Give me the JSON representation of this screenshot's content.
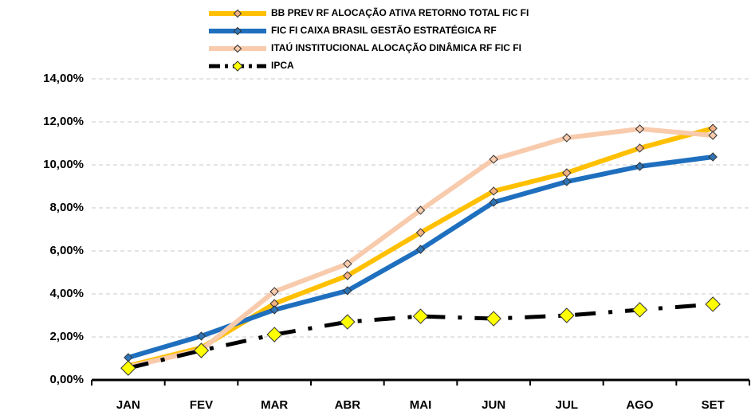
{
  "chart_data": {
    "type": "line",
    "categories": [
      "JAN",
      "FEV",
      "MAR",
      "ABR",
      "MAI",
      "JUN",
      "JUL",
      "AGO",
      "SET"
    ],
    "series": [
      {
        "name": "BB PREV RF ALOCAÇÃO ATIVA RETORNO TOTAL FIC FI",
        "color": "#FFC000",
        "marker_color": "#F4B183",
        "values": [
          0.65,
          1.5,
          3.55,
          4.85,
          6.85,
          8.78,
          9.63,
          10.78,
          11.7
        ]
      },
      {
        "name": "FIC FI CAIXA BRASIL GESTÃO ESTRATÉGICA RF",
        "color": "#1F6FBF",
        "marker_color": "#2E75B6",
        "values": [
          1.04,
          2.04,
          3.26,
          4.15,
          6.07,
          8.26,
          9.22,
          9.93,
          10.37
        ]
      },
      {
        "name": "ITAÚ INSTITUCIONAL ALOCAÇÃO DINÂMICA RF FIC FI",
        "color": "#F8CBAD",
        "marker_color": "#F8CBAD",
        "values": [
          0.6,
          1.4,
          4.11,
          5.4,
          7.89,
          10.26,
          11.26,
          11.67,
          11.37
        ]
      },
      {
        "name": "IPCA",
        "color": "#000000",
        "marker_color": "#FFFF00",
        "dashed": true,
        "values": [
          0.55,
          1.37,
          2.11,
          2.7,
          2.96,
          2.85,
          3.0,
          3.26,
          3.52
        ]
      }
    ],
    "ylim": [
      0,
      14
    ],
    "yticks": [
      {
        "value": 0,
        "label": "0,00%"
      },
      {
        "value": 2,
        "label": "2,00%"
      },
      {
        "value": 4,
        "label": "4,00%"
      },
      {
        "value": 6,
        "label": "6,00%"
      },
      {
        "value": 8,
        "label": "8,00%"
      },
      {
        "value": 10,
        "label": "10,00%"
      },
      {
        "value": 12,
        "label": "12,00%"
      },
      {
        "value": 14,
        "label": "14,00%"
      }
    ],
    "grid": true
  }
}
